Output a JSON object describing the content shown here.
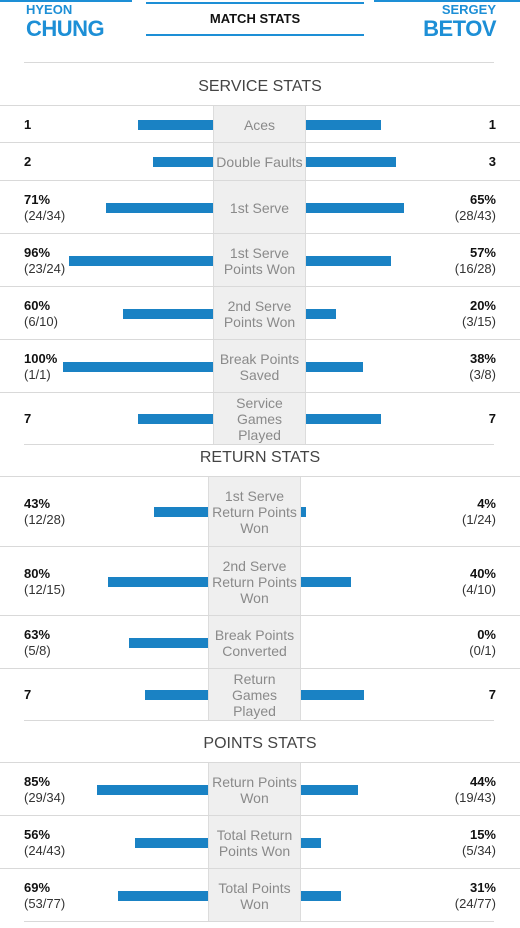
{
  "header": {
    "player1": {
      "first": "HYEON",
      "last": "CHUNG"
    },
    "player2": {
      "first": "SERGEY",
      "last": "BETOV"
    },
    "title": "MATCH STATS"
  },
  "colors": {
    "accent": "#1d8fd6",
    "bar": "#1a82c4"
  },
  "sections": [
    {
      "title": "SERVICE STATS",
      "rows": [
        {
          "label": "Aces",
          "left": {
            "value": "1",
            "detail": ""
          },
          "right": {
            "value": "1",
            "detail": ""
          },
          "left_share": 0.5,
          "right_share": 0.5
        },
        {
          "label": "Double Faults",
          "left": {
            "value": "2",
            "detail": ""
          },
          "right": {
            "value": "3",
            "detail": ""
          },
          "left_share": 0.4,
          "right_share": 0.6
        },
        {
          "label": "1st Serve",
          "left": {
            "value": "71%",
            "detail": "(24/34)"
          },
          "right": {
            "value": "65%",
            "detail": "(28/43)"
          },
          "left_share": 0.71,
          "right_share": 0.65
        },
        {
          "label": "1st Serve Points Won",
          "left": {
            "value": "96%",
            "detail": "(23/24)"
          },
          "right": {
            "value": "57%",
            "detail": "(16/28)"
          },
          "left_share": 0.96,
          "right_share": 0.57
        },
        {
          "label": "2nd Serve Points Won",
          "left": {
            "value": "60%",
            "detail": "(6/10)"
          },
          "right": {
            "value": "20%",
            "detail": "(3/15)"
          },
          "left_share": 0.6,
          "right_share": 0.2
        },
        {
          "label": "Break Points Saved",
          "left": {
            "value": "100%",
            "detail": "(1/1)"
          },
          "right": {
            "value": "38%",
            "detail": "(3/8)"
          },
          "left_share": 1.0,
          "right_share": 0.38
        },
        {
          "label": "Service Games Played",
          "left": {
            "value": "7",
            "detail": ""
          },
          "right": {
            "value": "7",
            "detail": ""
          },
          "left_share": 0.5,
          "right_share": 0.5
        }
      ]
    },
    {
      "title": "RETURN STATS",
      "rows": [
        {
          "label": "1st Serve Return Points Won",
          "left": {
            "value": "43%",
            "detail": "(12/28)"
          },
          "right": {
            "value": "4%",
            "detail": "(1/24)"
          },
          "left_share": 0.43,
          "right_share": 0.04
        },
        {
          "label": "2nd Serve Return Points Won",
          "left": {
            "value": "80%",
            "detail": "(12/15)"
          },
          "right": {
            "value": "40%",
            "detail": "(4/10)"
          },
          "left_share": 0.8,
          "right_share": 0.4
        },
        {
          "label": "Break Points Converted",
          "left": {
            "value": "63%",
            "detail": "(5/8)"
          },
          "right": {
            "value": "0%",
            "detail": "(0/1)"
          },
          "left_share": 0.63,
          "right_share": 0.0
        },
        {
          "label": "Return Games Played",
          "left": {
            "value": "7",
            "detail": ""
          },
          "right": {
            "value": "7",
            "detail": ""
          },
          "left_share": 0.5,
          "right_share": 0.5
        }
      ]
    },
    {
      "title": "POINTS STATS",
      "rows": [
        {
          "label": "Return Points Won",
          "left": {
            "value": "85%",
            "detail": "(29/34)"
          },
          "right": {
            "value": "44%",
            "detail": "(19/43)"
          },
          "left_share": 0.85,
          "right_share": 0.44
        },
        {
          "label": "Total Return Points Won",
          "left": {
            "value": "56%",
            "detail": "(24/43)"
          },
          "right": {
            "value": "15%",
            "detail": "(5/34)"
          },
          "left_share": 0.56,
          "right_share": 0.15
        },
        {
          "label": "Total Points Won",
          "left": {
            "value": "69%",
            "detail": "(53/77)"
          },
          "right": {
            "value": "31%",
            "detail": "(24/77)"
          },
          "left_share": 0.69,
          "right_share": 0.31
        }
      ]
    }
  ]
}
